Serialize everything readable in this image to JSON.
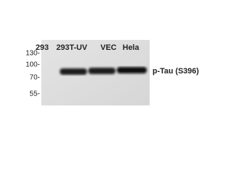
{
  "lanes": [
    "293",
    "293T-UV",
    "VEC",
    "Hela"
  ],
  "markers": [
    "130-",
    "100-",
    "70-",
    "55-"
  ],
  "band_label": "p-Tau (S396)"
}
